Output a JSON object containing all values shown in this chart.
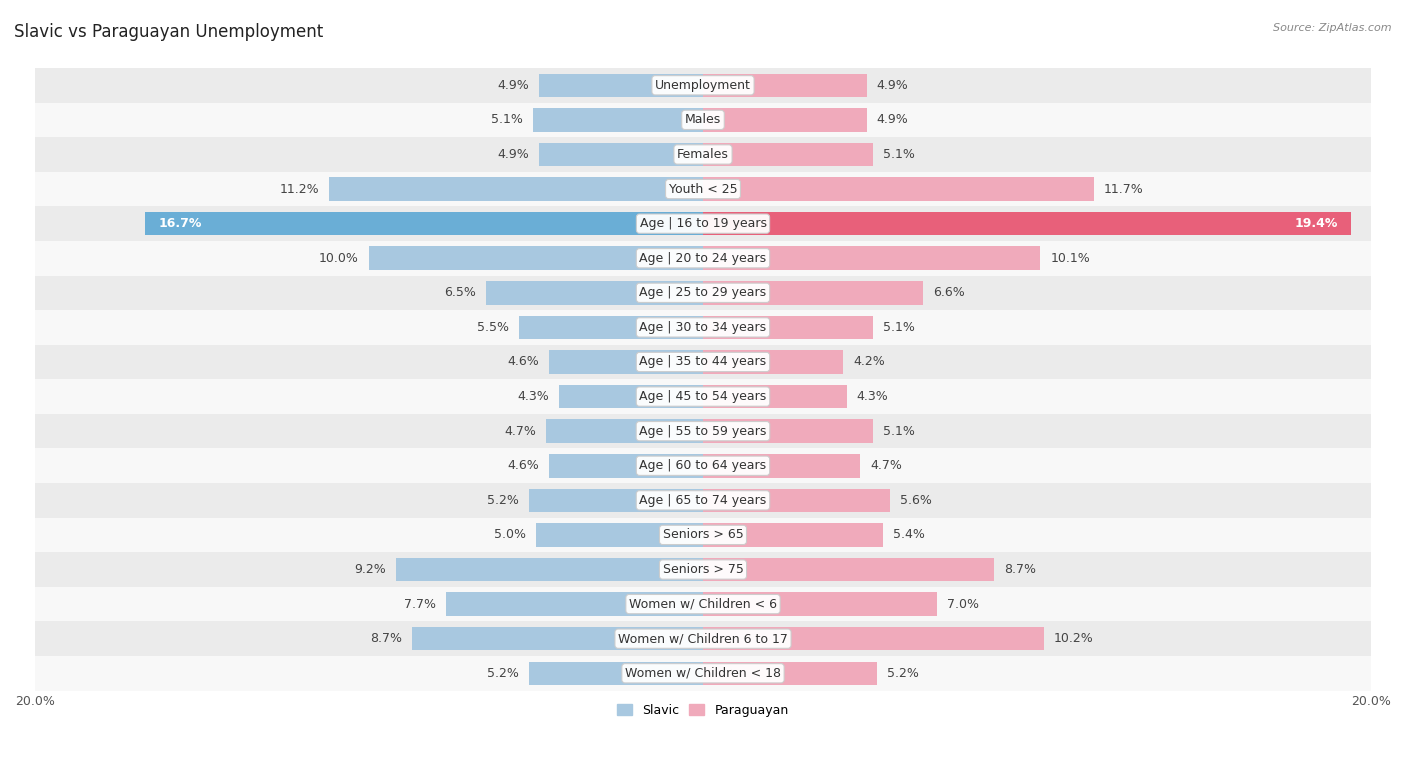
{
  "title": "Slavic vs Paraguayan Unemployment",
  "source": "Source: ZipAtlas.com",
  "categories": [
    "Unemployment",
    "Males",
    "Females",
    "Youth < 25",
    "Age | 16 to 19 years",
    "Age | 20 to 24 years",
    "Age | 25 to 29 years",
    "Age | 30 to 34 years",
    "Age | 35 to 44 years",
    "Age | 45 to 54 years",
    "Age | 55 to 59 years",
    "Age | 60 to 64 years",
    "Age | 65 to 74 years",
    "Seniors > 65",
    "Seniors > 75",
    "Women w/ Children < 6",
    "Women w/ Children 6 to 17",
    "Women w/ Children < 18"
  ],
  "slavic": [
    4.9,
    5.1,
    4.9,
    11.2,
    16.7,
    10.0,
    6.5,
    5.5,
    4.6,
    4.3,
    4.7,
    4.6,
    5.2,
    5.0,
    9.2,
    7.7,
    8.7,
    5.2
  ],
  "paraguayan": [
    4.9,
    4.9,
    5.1,
    11.7,
    19.4,
    10.1,
    6.6,
    5.1,
    4.2,
    4.3,
    5.1,
    4.7,
    5.6,
    5.4,
    8.7,
    7.0,
    10.2,
    5.2
  ],
  "slavic_color": "#a8c8e0",
  "paraguayan_color": "#f0aabb",
  "highlight_slavic_color": "#6aaed6",
  "highlight_paraguayan_color": "#e8607a",
  "row_bg_light": "#ebebeb",
  "row_bg_white": "#f8f8f8",
  "axis_limit": 20.0,
  "bar_height": 0.68,
  "legend_slavic": "Slavic",
  "legend_paraguayan": "Paraguayan",
  "label_fontsize": 9,
  "cat_fontsize": 9,
  "title_fontsize": 12
}
